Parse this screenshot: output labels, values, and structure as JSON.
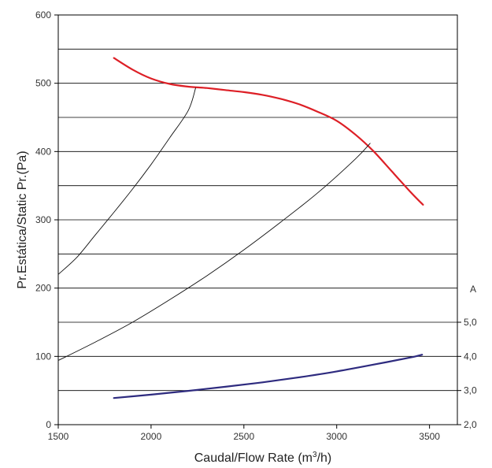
{
  "chart_data": {
    "type": "line",
    "title": "",
    "xlabel": "Caudal/Flow Rate (m",
    "xlabel_sup": "3",
    "xlabel_end": "/h)",
    "ylabel": "Pr.Estática/Static Pr.(Pa)",
    "y2label": "A",
    "xlim": [
      1500,
      3650
    ],
    "ylim": [
      0,
      600
    ],
    "y2lim": [
      2.0,
      5.0
    ],
    "x_ticks": [
      "1500",
      "2000",
      "2500",
      "3000",
      "3500"
    ],
    "y_ticks": [
      "0",
      "100",
      "200",
      "300",
      "400",
      "500",
      "600"
    ],
    "y2_ticks": [
      "2,0",
      "3,0",
      "4,0",
      "5,0"
    ],
    "grid": true,
    "series": [
      {
        "role": "static-pressure",
        "axis": "left",
        "color": "#dd1f26",
        "stroke_width": 2.2,
        "x": [
          1800,
          1900,
          2000,
          2100,
          2200,
          2300,
          2400,
          2500,
          2600,
          2700,
          2800,
          2900,
          3000,
          3100,
          3200,
          3300,
          3400,
          3465
        ],
        "values": [
          537,
          520,
          507,
          499,
          495,
          493,
          490,
          487,
          483,
          477,
          469,
          458,
          445,
          425,
          400,
          370,
          340,
          322
        ]
      },
      {
        "role": "current",
        "axis": "right",
        "color": "#2e2b7f",
        "stroke_width": 2.2,
        "x": [
          1800,
          2000,
          2200,
          2400,
          2600,
          2800,
          3000,
          3200,
          3400,
          3460
        ],
        "values": [
          2.78,
          2.88,
          2.99,
          3.11,
          3.24,
          3.39,
          3.56,
          3.76,
          3.97,
          4.05
        ]
      },
      {
        "role": "system-curve-1",
        "axis": "left",
        "color": "#111111",
        "stroke_width": 0.9,
        "x": [
          1500,
          1600,
          1700,
          1800,
          1900,
          2000,
          2100,
          2200,
          2240
        ],
        "values": [
          220,
          245,
          278,
          311,
          345,
          381,
          420,
          460,
          493
        ]
      },
      {
        "role": "system-curve-2",
        "axis": "left",
        "color": "#111111",
        "stroke_width": 0.9,
        "x": [
          1500,
          1700,
          1900,
          2100,
          2300,
          2500,
          2700,
          2900,
          3100,
          3180
        ],
        "values": [
          94,
          121,
          150,
          183,
          218,
          256,
          297,
          340,
          389,
          412
        ]
      }
    ]
  }
}
